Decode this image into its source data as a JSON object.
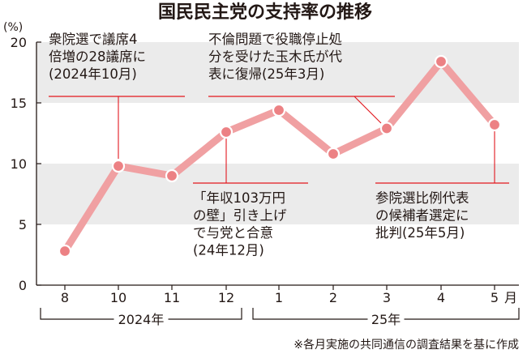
{
  "title": "国民民主党の支持率の推移",
  "note": "※各月実施の共同通信の調査結果を基に作成",
  "colors": {
    "line": "#f0a0a2",
    "marker_fill": "#ec8184",
    "band": "#ebebeb",
    "accent": "#e2171e",
    "text": "#231815"
  },
  "chart_data": {
    "type": "line",
    "title": "国民民主党の支持率の推移",
    "ylabel": "(%)",
    "ylim": [
      0,
      20
    ],
    "yticks": [
      "0",
      "5",
      "10",
      "15",
      "20"
    ],
    "grid": "alternating horizontal bands",
    "categories": [
      "8",
      "10",
      "11",
      "12",
      "1",
      "2",
      "3",
      "4",
      "5"
    ],
    "x_unit": "月",
    "year_groups": [
      {
        "label": "2024年",
        "months": [
          "8",
          "10",
          "11",
          "12"
        ]
      },
      {
        "label": "25年",
        "months": [
          "1",
          "2",
          "3",
          "4",
          "5"
        ]
      }
    ],
    "series": [
      {
        "values": [
          2.8,
          9.8,
          9.0,
          12.6,
          14.4,
          10.8,
          12.9,
          18.4,
          13.2
        ]
      }
    ],
    "annotations": [
      {
        "lines": [
          "衆院選で議席4",
          "倍増の28議席に",
          "(2024年10月)"
        ],
        "point": 1
      },
      {
        "lines": [
          "「年収103万円",
          "の壁」引き上げ",
          "で与党と合意",
          "(24年12月)"
        ],
        "point": 3
      },
      {
        "lines": [
          "不倫問題で役職停止処",
          "分を受けた玉木氏が代",
          "表に復帰(25年3月)"
        ],
        "point": 6
      },
      {
        "lines": [
          "参院選比例代表",
          "の候補者選定に",
          "批判(25年5月)"
        ],
        "point": 8
      }
    ]
  }
}
